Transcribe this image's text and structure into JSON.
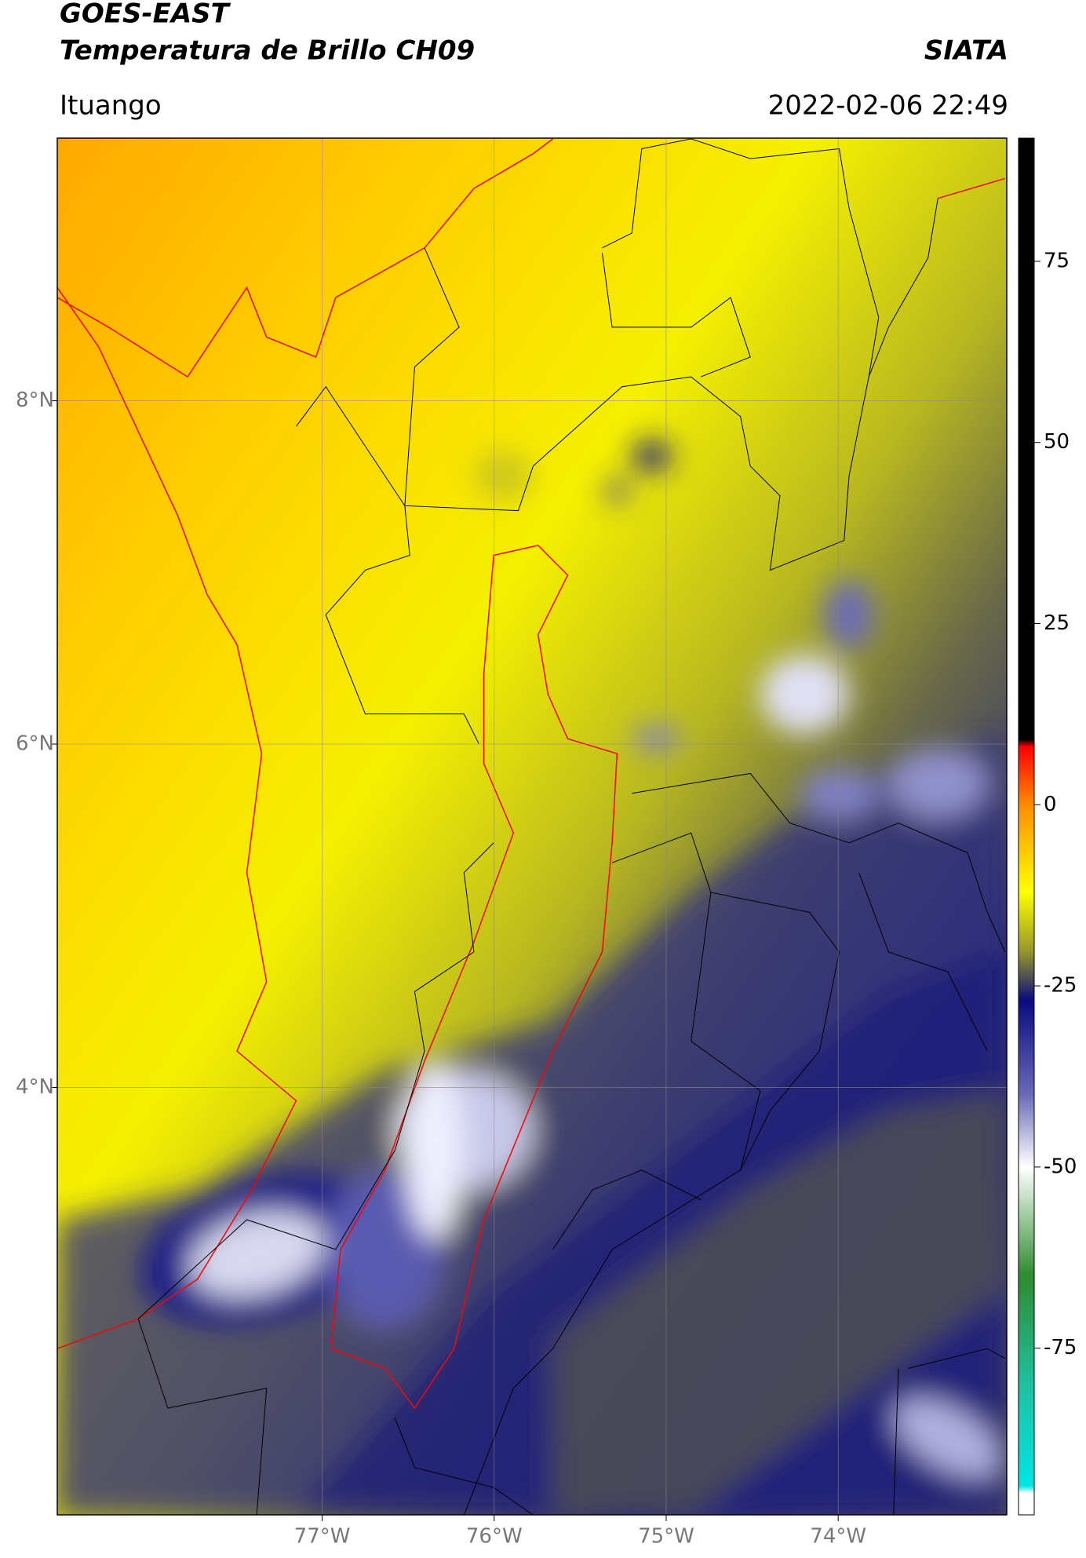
{
  "header": {
    "title": "GOES-EAST",
    "subtitle": "Temperatura de Brillo CH09",
    "brand": "SIATA",
    "location": "Ituango",
    "datetime": "2022-02-06 22:49"
  },
  "map": {
    "xlim": [
      -78.54,
      -73.02
    ],
    "ylim": [
      1.51,
      9.53
    ],
    "xticks": [
      {
        "value": -77,
        "label": "77°W"
      },
      {
        "value": -76,
        "label": "76°W"
      },
      {
        "value": -75,
        "label": "75°W"
      },
      {
        "value": -74,
        "label": "74°W"
      }
    ],
    "yticks": [
      {
        "value": 4,
        "label": "4°N"
      },
      {
        "value": 6,
        "label": "6°N"
      },
      {
        "value": 8,
        "label": "8°N"
      }
    ],
    "grid": true
  },
  "colorbar": {
    "lim": [
      -98,
      92
    ],
    "ticks": [
      75,
      50,
      25,
      0,
      -25,
      -50,
      -75
    ],
    "stops": [
      {
        "value": 92,
        "color": "#000000"
      },
      {
        "value": 9,
        "color": "#000000"
      },
      {
        "value": 8,
        "color": "#ff0000"
      },
      {
        "value": 0,
        "color": "#ff8c00"
      },
      {
        "value": -12,
        "color": "#ffff00"
      },
      {
        "value": -20,
        "color": "#9a9a2a"
      },
      {
        "value": -24,
        "color": "#4a4a55"
      },
      {
        "value": -27,
        "color": "#0a0a80"
      },
      {
        "value": -40,
        "color": "#6a6ab8"
      },
      {
        "value": -50,
        "color": "#ffffff"
      },
      {
        "value": -65,
        "color": "#2e8b2e"
      },
      {
        "value": -80,
        "color": "#20c0a0"
      },
      {
        "value": -94,
        "color": "#00e5e5"
      },
      {
        "value": -95,
        "color": "#ffffff"
      },
      {
        "value": -98,
        "color": "#ffffff"
      }
    ]
  }
}
